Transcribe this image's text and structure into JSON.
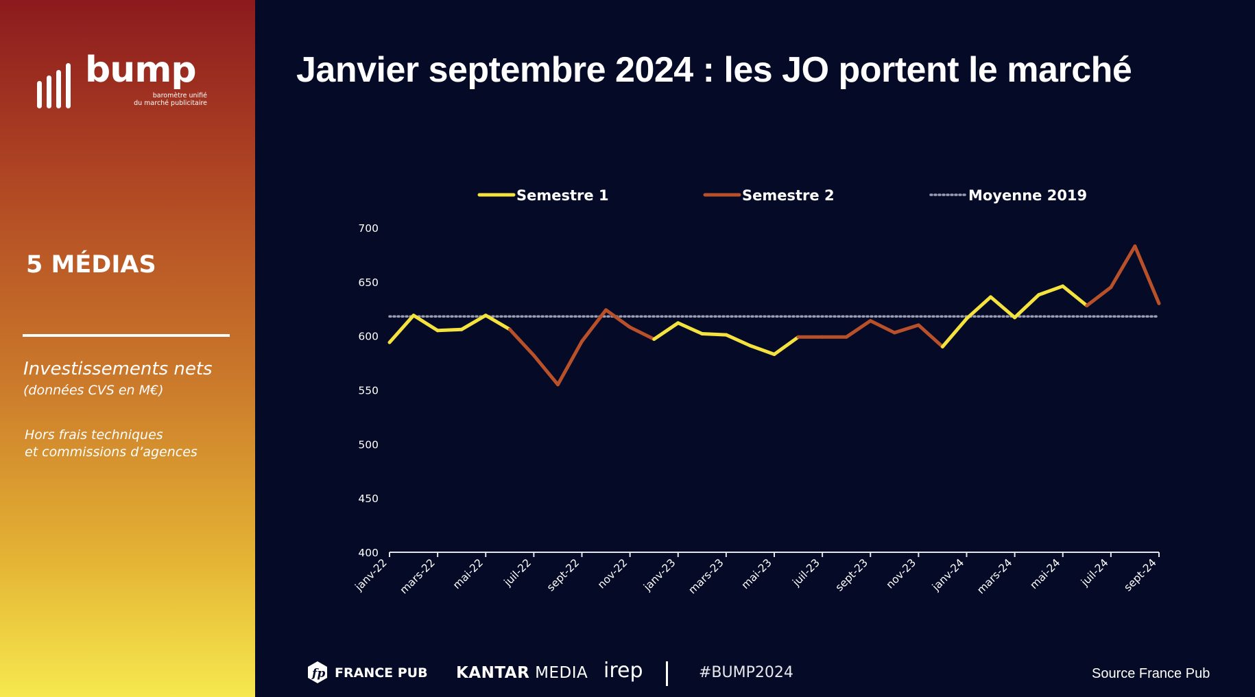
{
  "brand": {
    "logo_word": "bump",
    "logo_tagline": "baromètre unifié\ndu marché publicitaire"
  },
  "sidebar": {
    "media_title": "5 MÉDIAS",
    "invest_title": "Investissements nets",
    "invest_sub": "(données CVS en M€)",
    "note_line1": "Hors frais techniques",
    "note_line2": "et commissions d’agences"
  },
  "title": "Janvier septembre 2024 : les JO portent le marché",
  "colors": {
    "semestre1": "#f4e23f",
    "semestre2": "#b8502a",
    "moyenne": "#9a9eb2",
    "background": "#050a26"
  },
  "chart_data": {
    "type": "line",
    "title": "",
    "xlabel": "",
    "ylabel": "",
    "ylim": [
      400,
      700
    ],
    "yticks": [
      400,
      450,
      500,
      550,
      600,
      650,
      700
    ],
    "legend_position": "top",
    "grid": false,
    "x": [
      "janv-22",
      "févr-22",
      "mars-22",
      "avr-22",
      "mai-22",
      "juin-22",
      "juil-22",
      "août-22",
      "sept-22",
      "oct-22",
      "nov-22",
      "déc-22",
      "janv-23",
      "févr-23",
      "mars-23",
      "avr-23",
      "mai-23",
      "juin-23",
      "juil-23",
      "août-23",
      "sept-23",
      "oct-23",
      "nov-23",
      "déc-23",
      "janv-24",
      "févr-24",
      "mars-24",
      "avr-24",
      "mai-24",
      "juin-24",
      "juil-24",
      "août-24",
      "sept-24"
    ],
    "xticklabels": [
      "janv-22",
      "mars-22",
      "mai-22",
      "juil-22",
      "sept-22",
      "nov-22",
      "janv-23",
      "mars-23",
      "mai-23",
      "juil-23",
      "sept-23",
      "nov-23",
      "janv-24",
      "mars-24",
      "mai-24",
      "juil-24",
      "sept-24"
    ],
    "values": [
      594,
      619,
      605,
      606,
      619,
      606,
      582,
      555,
      595,
      624,
      608,
      597,
      612,
      602,
      601,
      591,
      583,
      599,
      599,
      599,
      614,
      603,
      610,
      590,
      616,
      636,
      617,
      638,
      646,
      628,
      645,
      683,
      630
    ],
    "series": [
      {
        "name": "Semestre 1",
        "style": "solid",
        "color": "#f4e23f"
      },
      {
        "name": "Semestre 2",
        "style": "solid",
        "color": "#b8502a"
      },
      {
        "name": "Moyenne 2019",
        "style": "dotted",
        "color": "#9a9eb2",
        "value": 618
      }
    ]
  },
  "footer": {
    "france_pub": "FRANCE PUB",
    "kantar_bold": "KANTAR",
    "kantar_rest": " MEDIA",
    "irep": "irep",
    "hashtag": "#BUMP2024",
    "source": "Source France Pub"
  }
}
